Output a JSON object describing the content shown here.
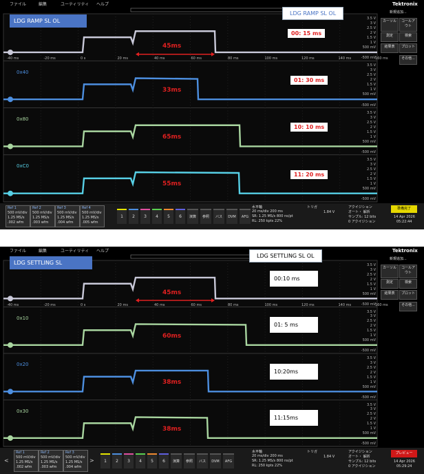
{
  "screens": [
    {
      "menu": [
        "ファイル",
        "編集",
        "ユーティリティ",
        "ヘルプ"
      ],
      "title_box": "LDG RAMP SL OL",
      "label_box": "LDG RAMP SL OL",
      "brand": "Tektronix",
      "side_panel": [
        "新規追加...",
        "カーソル",
        "コールアウト",
        "測定",
        "検索",
        "結果表",
        "プロット",
        "その他..."
      ],
      "channels": [
        {
          "label": null,
          "annotation": "00: 15 ms",
          "measure": "45ms"
        },
        {
          "label": "0x40",
          "annotation": "01: 30 ms",
          "measure": "33ms"
        },
        {
          "label": "0x80",
          "annotation": "10: 10 ms",
          "measure": "65ms"
        },
        {
          "label": "0xC0",
          "annotation": "11: 20 ms",
          "measure": "55ms"
        }
      ],
      "xaxis": [
        "-40 ms",
        "-20 ms",
        "0 s",
        "20 ms",
        "40 ms",
        "60 ms",
        "80 ms",
        "100 ms",
        "120 ms",
        "140 ms",
        "160 ms"
      ],
      "yaxis": [
        "3.5 V",
        "3 V",
        "2.5 V",
        "2 V",
        "1.5 V",
        "1 V",
        "500 mV",
        "-500 mV"
      ],
      "refs": [
        {
          "name": "Ref 1",
          "lines": [
            "500 mV/div",
            "1.25 MS/s",
            ".002 wfm"
          ]
        },
        {
          "name": "Ref 2",
          "lines": [
            "500 mV/div",
            "1.25 MS/s",
            ".003 wfm"
          ]
        },
        {
          "name": "Ref 3",
          "lines": [
            "500 mV/div",
            "1.25 MS/s",
            ".004 wfm"
          ]
        },
        {
          "name": "Ref 4",
          "lines": [
            "500 mV/div",
            "1.25 MS/s",
            ".005 wfm"
          ]
        }
      ],
      "buttons": [
        "1",
        "2",
        "3",
        "4",
        "5",
        "6",
        "演算",
        "参照",
        "バス",
        "DVM",
        "AFG"
      ],
      "horizontal": {
        "title": "水平軸",
        "lines": [
          "20 ms/div  200 ms",
          "SR: 1.25 MS/s  800 ns/pt",
          "RL: 250 kpts  22%"
        ]
      },
      "trigger": {
        "title": "トリガ",
        "value": "1.84 V"
      },
      "acquisition": {
        "title": "アクイジション",
        "lines": [
          "オート・  解析",
          "サンプル: 12 bits",
          "0 アクイジション"
        ]
      },
      "status": "準備完了",
      "date": "14 Apr 2026",
      "time": "05:22:44"
    },
    {
      "menu": [
        "ファイル",
        "編集",
        "ユーティリティ",
        "ヘルプ"
      ],
      "title_box": "LDG SETTLING SL",
      "label_box": "LDG SETTLING SL OL",
      "brand": "Tektronix",
      "side_panel": [
        "新規追加...",
        "カーソル",
        "コールアウト",
        "測定",
        "検索",
        "結果表",
        "プロット",
        "その他..."
      ],
      "channels": [
        {
          "label": null,
          "annotation": "00:10 ms",
          "measure": "45ms"
        },
        {
          "label": "0x10",
          "annotation": "01: 5 ms",
          "measure": "60ms"
        },
        {
          "label": "0x20",
          "annotation": "10:20ms",
          "measure": "38ms"
        },
        {
          "label": "0x30",
          "annotation": "11:15ms",
          "measure": "38ms"
        }
      ],
      "xaxis": [
        "-40 ms",
        "-20 ms",
        "0 s",
        "20 ms",
        "40 ms",
        "60 ms",
        "80 ms",
        "100 ms",
        "120 ms",
        "140 ms",
        "160 ms"
      ],
      "yaxis": [
        "3.5 V",
        "3 V",
        "2.5 V",
        "2 V",
        "1.5 V",
        "1 V",
        "500 mV",
        "-500 mV"
      ],
      "refs": [
        {
          "name": "Ref 1",
          "lines": [
            "500 mV/div",
            "1.25 MS/s",
            ".002 wfm"
          ]
        },
        {
          "name": "Ref 2",
          "lines": [
            "500 mV/div",
            "1.25 MS/s",
            ".003 wfm"
          ]
        },
        {
          "name": "Ref 3",
          "lines": [
            "500 mV/div",
            "1.25 MS/s",
            ".004 wfm"
          ]
        }
      ],
      "buttons": [
        "1",
        "2",
        "3",
        "4",
        "5",
        "6",
        "演算",
        "参照",
        "バス",
        "DVM",
        "AFG"
      ],
      "horizontal": {
        "title": "水平軸",
        "lines": [
          "20 ms/div  200 ms",
          "SR: 1.25 MS/s  800 ns/pt",
          "RL: 250 kpts  22%"
        ]
      },
      "trigger": {
        "title": "トリガ",
        "value": "1.84 V"
      },
      "acquisition": {
        "title": "アクイジション",
        "lines": [
          "オート・  解析",
          "サンプル: 12 bits",
          "0 アクイジション"
        ]
      },
      "status": "プレビュー",
      "date": "14 Apr 2026",
      "time": "05:29:24"
    }
  ]
}
